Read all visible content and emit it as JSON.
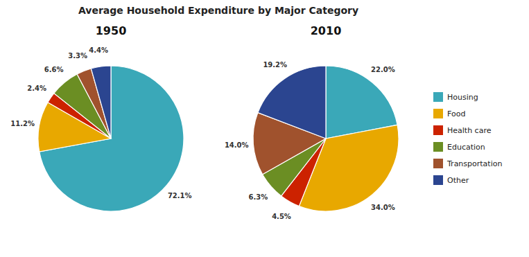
{
  "chart_data": {
    "type": "pie",
    "title": "Average Household Expenditure by Major Category",
    "categories": [
      "Housing",
      "Food",
      "Health care",
      "Education",
      "Transportation",
      "Other"
    ],
    "colors": [
      "#3AA8B8",
      "#E8A800",
      "#CC2200",
      "#6B8E23",
      "#A0522D",
      "#2B4590"
    ],
    "series": [
      {
        "name": "1950",
        "values": [
          72.1,
          11.2,
          2.4,
          6.6,
          3.3,
          4.4
        ],
        "value_labels": [
          "72.1%",
          "11.2%",
          "2.4%",
          "6.6%",
          "3.3%",
          "4.4%"
        ]
      },
      {
        "name": "2010",
        "values": [
          22.0,
          34.0,
          4.5,
          6.3,
          14.0,
          19.2
        ],
        "value_labels": [
          "22.0%",
          "34.0%",
          "4.5%",
          "6.3%",
          "14.0%",
          "19.2%"
        ]
      }
    ],
    "data_labels": true,
    "legend": "right"
  }
}
